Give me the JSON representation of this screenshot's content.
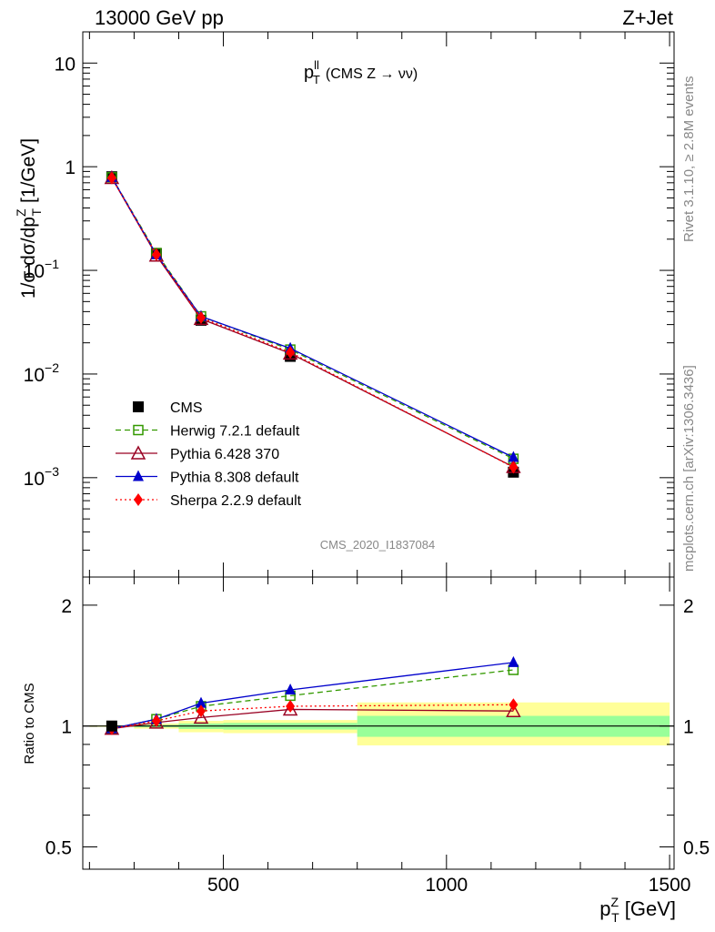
{
  "header": {
    "left": "13000 GeV pp",
    "right": "Z+Jet"
  },
  "side_labels": {
    "rivet": "Rivet 3.1.10, ≥ 2.8M events",
    "mcplots": "mcplots.cern.ch [arXiv:1306.3436]"
  },
  "plot_title": {
    "var": "p",
    "sup": "ll",
    "sub": "T",
    "rest": "(CMS Z → νν)"
  },
  "analysis_id": "CMS_2020_I1837084",
  "ylabel_main": {
    "pre": "1/σ dσ/dp",
    "sup": "Z",
    "sub": "T",
    "post": " [1/GeV]"
  },
  "ylabel_ratio": "Ratio to CMS",
  "xlabel": {
    "var": "p",
    "sup": "Z",
    "sub": "T",
    "post": " [GeV]"
  },
  "colors": {
    "cms": "#000000",
    "herwig": "#339900",
    "pythia6": "#990022",
    "pythia8": "#0000cc",
    "sherpa": "#ff0000",
    "band_yellow": "#ffff99",
    "band_green": "#99ff99",
    "side_text": "#888888"
  },
  "chart_data": [
    {
      "type": "line",
      "scale": "log-y",
      "xlim": [
        185,
        1510
      ],
      "ylim": [
        0.00011,
        20
      ],
      "x_ticks": [
        500,
        1000,
        1500
      ],
      "y_ticks": [
        {
          "value": 10,
          "label": "10"
        },
        {
          "value": 1,
          "label": "1"
        },
        {
          "value": 0.1,
          "label": "10",
          "exp": "−1"
        },
        {
          "value": 0.01,
          "label": "10",
          "exp": "−2"
        },
        {
          "value": 0.001,
          "label": "10",
          "exp": "−3"
        }
      ],
      "x": [
        250,
        350,
        450,
        650,
        1150
      ],
      "series": [
        {
          "name": "CMS",
          "key": "cms",
          "style": "data",
          "marker": "square-filled",
          "values": [
            0.8,
            0.145,
            0.033,
            0.0148,
            0.00113
          ]
        },
        {
          "name": "Herwig 7.2.1 default",
          "key": "herwig",
          "style": "dashed",
          "marker": "square-open",
          "values": [
            0.79,
            0.147,
            0.036,
            0.0172,
            0.00152
          ]
        },
        {
          "name": "Pythia 6.428 370",
          "key": "pythia6",
          "style": "solid",
          "marker": "triangle-open",
          "values": [
            0.78,
            0.139,
            0.034,
            0.0158,
            0.00127
          ]
        },
        {
          "name": "Pythia 8.308 default",
          "key": "pythia8",
          "style": "solid",
          "marker": "triangle-filled",
          "values": [
            0.79,
            0.142,
            0.036,
            0.0177,
            0.00157
          ]
        },
        {
          "name": "Sherpa 2.2.9 default",
          "key": "sherpa",
          "style": "dotted",
          "marker": "diamond-filled",
          "values": [
            0.78,
            0.142,
            0.035,
            0.0162,
            0.00126
          ]
        }
      ],
      "legend": "bottom-left"
    },
    {
      "type": "line",
      "scale": "log-y",
      "xlim": [
        185,
        1510
      ],
      "ylim": [
        0.44,
        2.35
      ],
      "y_ticks": [
        {
          "value": 2,
          "label": "2"
        },
        {
          "value": 1,
          "label": "1"
        },
        {
          "value": 0.5,
          "label": "0.5"
        }
      ],
      "x_ticks": [
        {
          "value": 500,
          "label": "500"
        },
        {
          "value": 1000,
          "label": "1000"
        },
        {
          "value": 1500,
          "label": "1500"
        }
      ],
      "bins": [
        [
          200,
          300
        ],
        [
          300,
          400
        ],
        [
          400,
          500
        ],
        [
          500,
          800
        ],
        [
          800,
          1500
        ]
      ],
      "band_yellow": [
        [
          0.995,
          1.005
        ],
        [
          0.985,
          1.015
        ],
        [
          0.965,
          1.03
        ],
        [
          0.96,
          1.035
        ],
        [
          0.895,
          1.145
        ]
      ],
      "band_green": [
        [
          0.998,
          1.002
        ],
        [
          0.993,
          1.007
        ],
        [
          0.983,
          1.015
        ],
        [
          0.98,
          1.018
        ],
        [
          0.94,
          1.06
        ]
      ],
      "x": [
        250,
        350,
        450,
        650,
        1150
      ],
      "series": [
        {
          "name": "Herwig 7.2.1 default",
          "key": "herwig",
          "values": [
            0.985,
            1.04,
            1.12,
            1.19,
            1.38
          ]
        },
        {
          "name": "Pythia 6.428 370",
          "key": "pythia6",
          "values": [
            0.985,
            1.02,
            1.05,
            1.1,
            1.09
          ]
        },
        {
          "name": "Pythia 8.308 default",
          "key": "pythia8",
          "values": [
            0.985,
            1.04,
            1.14,
            1.23,
            1.44
          ]
        },
        {
          "name": "Sherpa 2.2.9 default",
          "key": "sherpa",
          "values": [
            0.985,
            1.03,
            1.09,
            1.12,
            1.13
          ]
        }
      ]
    }
  ]
}
